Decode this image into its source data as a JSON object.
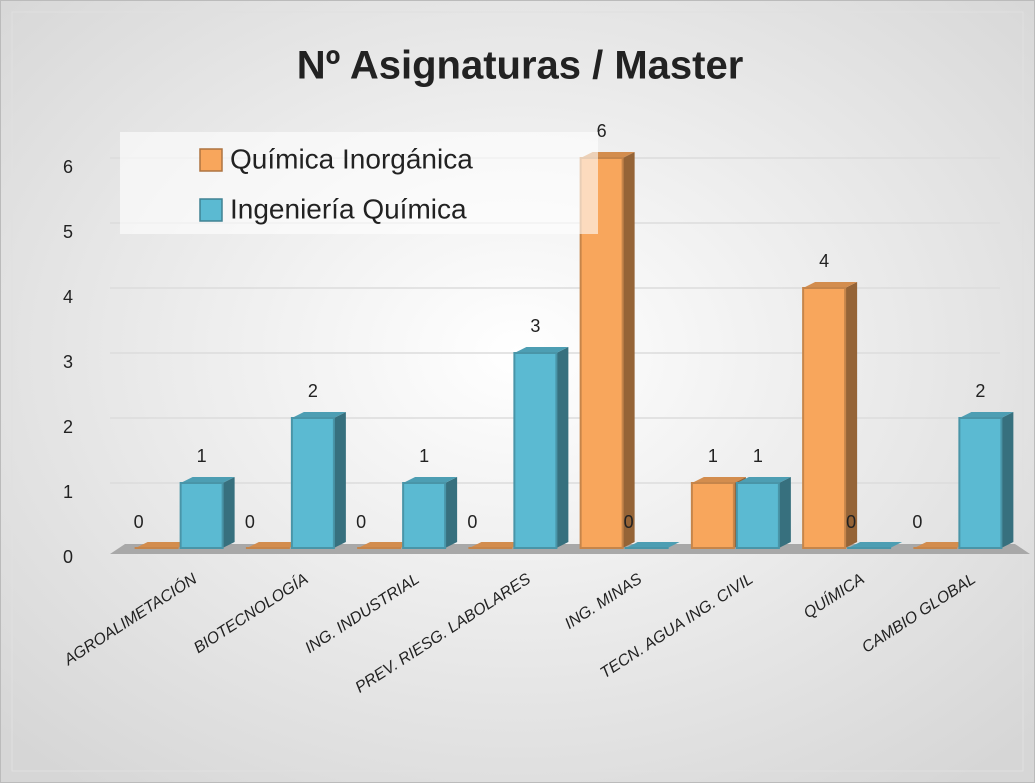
{
  "chart_data": {
    "type": "bar3d",
    "title": "Nº Asignaturas / Master",
    "categories": [
      "AGROALIMETACIÓN",
      "BIOTECNOLOGÍA",
      "ING. INDUSTRIAL",
      "PREV. RIESG. LABOLARES",
      "ING. MINAS",
      "TECN. AGUA ING. CIVIL",
      "QUÍMICA",
      "CAMBIO GLOBAL"
    ],
    "series": [
      {
        "name": "Química Inorgánica",
        "color": "#f8a65c",
        "values": [
          0,
          0,
          0,
          0,
          6,
          1,
          4,
          0
        ]
      },
      {
        "name": "Ingeniería Química",
        "color": "#5bbad2",
        "values": [
          1,
          2,
          1,
          3,
          0,
          1,
          0,
          2
        ]
      }
    ],
    "ylim": [
      0,
      6
    ],
    "yticks": [
      0,
      1,
      2,
      3,
      4,
      5,
      6
    ],
    "grid": true,
    "legend": "top-left",
    "data_labels": true
  }
}
